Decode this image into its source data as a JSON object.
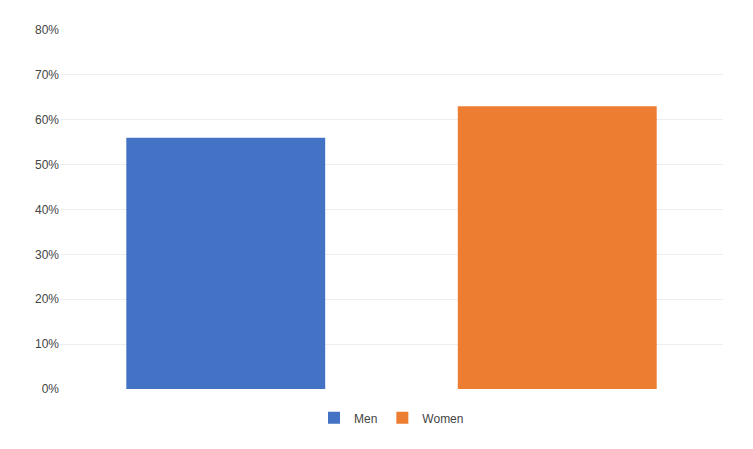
{
  "chart_data": {
    "type": "bar",
    "categories": [
      "Men",
      "Women"
    ],
    "values": [
      0.56,
      0.63
    ],
    "colors": [
      "#4472C4",
      "#ED7D31"
    ],
    "ylim": [
      0,
      0.8
    ],
    "yticks": [
      {
        "value": 0.0,
        "label": "0%"
      },
      {
        "value": 0.1,
        "label": "10%"
      },
      {
        "value": 0.2,
        "label": "20%"
      },
      {
        "value": 0.3,
        "label": "30%"
      },
      {
        "value": 0.4,
        "label": "40%"
      },
      {
        "value": 0.5,
        "label": "50%"
      },
      {
        "value": 0.6,
        "label": "60%"
      },
      {
        "value": 0.7,
        "label": "70%"
      },
      {
        "value": 0.8,
        "label": "80%"
      }
    ],
    "grid": true,
    "legend": "bottom",
    "tick_labels": "y"
  }
}
